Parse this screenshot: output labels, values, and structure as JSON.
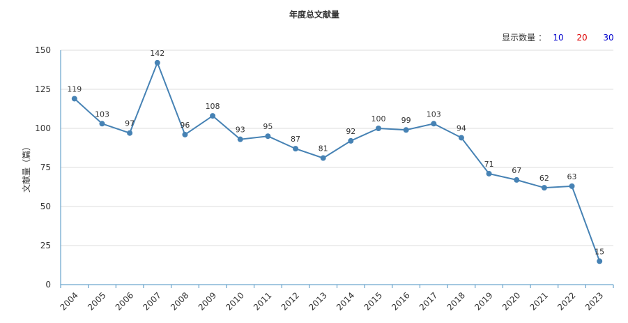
{
  "chart_data": {
    "type": "line",
    "title": "年度总文献量",
    "ylabel": "文献量（篇）",
    "xlabel": "",
    "categories": [
      "2004",
      "2005",
      "2006",
      "2007",
      "2008",
      "2009",
      "2010",
      "2011",
      "2012",
      "2013",
      "2014",
      "2015",
      "2016",
      "2017",
      "2018",
      "2019",
      "2020",
      "2021",
      "2022",
      "2023"
    ],
    "values": [
      119,
      103,
      97,
      142,
      96,
      108,
      93,
      95,
      87,
      81,
      92,
      100,
      99,
      103,
      94,
      71,
      67,
      62,
      63,
      15
    ],
    "ylim": [
      0,
      150
    ],
    "yticks": [
      0,
      25,
      50,
      75,
      100,
      125,
      150
    ],
    "grid": true,
    "line_color": "#4682b4"
  },
  "controls": {
    "count_label": "显示数量 ：",
    "options": [
      {
        "label": "10",
        "color": "#0000cc"
      },
      {
        "label": "20",
        "color": "#dd0000"
      },
      {
        "label": "30",
        "color": "#0000cc"
      }
    ]
  }
}
